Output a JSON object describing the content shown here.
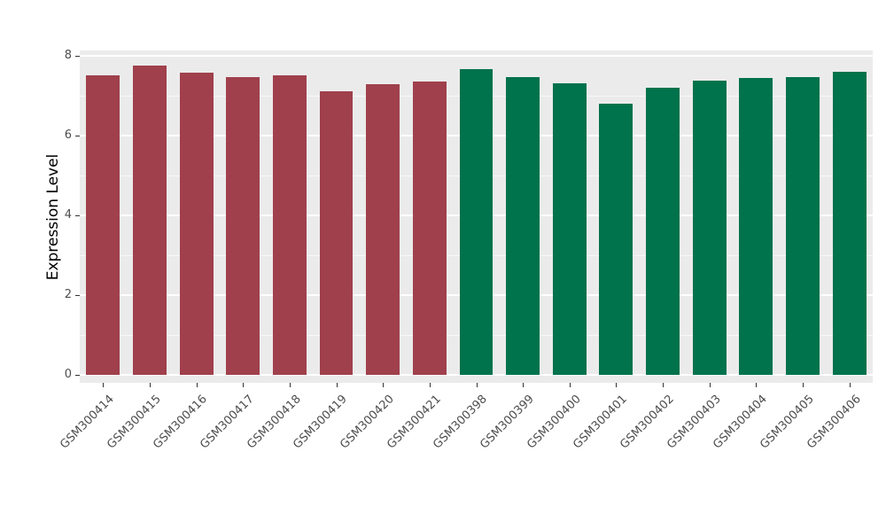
{
  "chart_data": {
    "type": "bar",
    "title": "",
    "xlabel": "",
    "ylabel": "Expression Level",
    "ylim": [
      0,
      8
    ],
    "yticks": [
      0,
      2,
      4,
      6,
      8
    ],
    "minor_yticks": [
      1,
      3,
      5,
      7
    ],
    "grid": "major-and-minor-horizontal",
    "legend": "none",
    "panel_background": "#EBEBEB",
    "groups": [
      {
        "name": "maroon-group",
        "color": "#A0404C"
      },
      {
        "name": "green-group",
        "color": "#00724C"
      }
    ],
    "bars": [
      {
        "label": "GSM300414",
        "value": 7.51,
        "color": "#A0404C"
      },
      {
        "label": "GSM300415",
        "value": 7.76,
        "color": "#A0404C"
      },
      {
        "label": "GSM300416",
        "value": 7.58,
        "color": "#A0404C"
      },
      {
        "label": "GSM300417",
        "value": 7.47,
        "color": "#A0404C"
      },
      {
        "label": "GSM300418",
        "value": 7.51,
        "color": "#A0404C"
      },
      {
        "label": "GSM300419",
        "value": 7.12,
        "color": "#A0404C"
      },
      {
        "label": "GSM300420",
        "value": 7.29,
        "color": "#A0404C"
      },
      {
        "label": "GSM300421",
        "value": 7.36,
        "color": "#A0404C"
      },
      {
        "label": "GSM300398",
        "value": 7.66,
        "color": "#00724C"
      },
      {
        "label": "GSM300399",
        "value": 7.47,
        "color": "#00724C"
      },
      {
        "label": "GSM300400",
        "value": 7.31,
        "color": "#00724C"
      },
      {
        "label": "GSM300401",
        "value": 6.8,
        "color": "#00724C"
      },
      {
        "label": "GSM300402",
        "value": 7.19,
        "color": "#00724C"
      },
      {
        "label": "GSM300403",
        "value": 7.38,
        "color": "#00724C"
      },
      {
        "label": "GSM300404",
        "value": 7.45,
        "color": "#00724C"
      },
      {
        "label": "GSM300405",
        "value": 7.47,
        "color": "#00724C"
      },
      {
        "label": "GSM300406",
        "value": 7.6,
        "color": "#00724C"
      }
    ]
  }
}
